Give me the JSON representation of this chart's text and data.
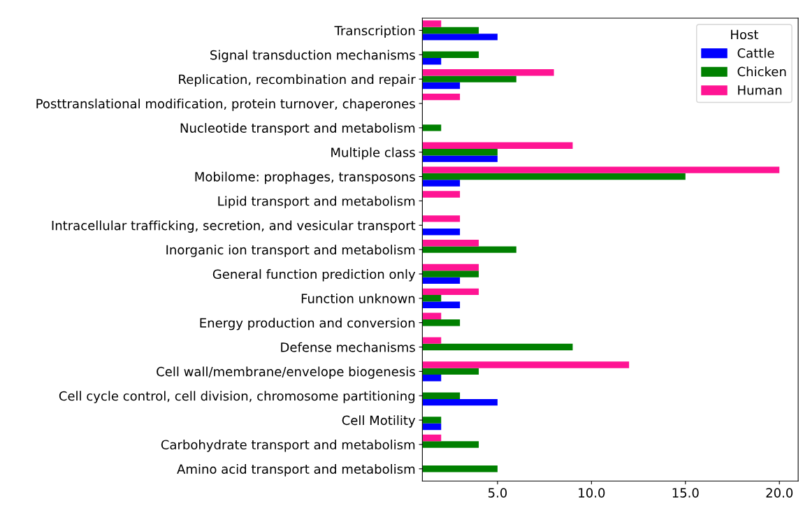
{
  "chart_data": {
    "type": "bar",
    "orientation": "horizontal",
    "legend_title": "Host",
    "legend": "top right",
    "grid": false,
    "categories": [
      "Transcription",
      "Signal transduction mechanisms",
      "Replication, recombination and repair",
      "Posttranslational modification, protein turnover, chaperones",
      "Nucleotide transport and metabolism",
      "Multiple class",
      "Mobilome: prophages, transposons",
      "Lipid transport and metabolism",
      "Intracellular trafficking, secretion, and vesicular transport",
      "Inorganic ion transport and metabolism",
      "General function prediction only",
      "Function unknown",
      "Energy production and conversion",
      "Defense mechanisms",
      "Cell wall/membrane/envelope biogenesis",
      "Cell cycle control, cell division, chromosome partitioning",
      "Cell Motility",
      "Carbohydrate transport and metabolism",
      "Amino acid transport and metabolism"
    ],
    "series": [
      {
        "name": "Cattle",
        "color": "#0000ff",
        "values": [
          5,
          2,
          3,
          null,
          null,
          5,
          3,
          null,
          3,
          null,
          3,
          3,
          null,
          null,
          2,
          5,
          2,
          null,
          null
        ]
      },
      {
        "name": "Chicken",
        "color": "#008000",
        "values": [
          4,
          4,
          6,
          null,
          2,
          5,
          15,
          null,
          null,
          6,
          4,
          2,
          3,
          9,
          4,
          3,
          2,
          4,
          5
        ]
      },
      {
        "name": "Human",
        "color": "#ff1493",
        "values": [
          2,
          null,
          8,
          3,
          null,
          9,
          20,
          3,
          3,
          4,
          4,
          4,
          2,
          2,
          12,
          null,
          null,
          2,
          null
        ]
      }
    ],
    "xlim": [
      1,
      21
    ],
    "xticks": [
      {
        "value": 5,
        "label": "5.0"
      },
      {
        "value": 10,
        "label": "10.0"
      },
      {
        "value": 15,
        "label": "15.0"
      },
      {
        "value": 20,
        "label": "20.0"
      }
    ]
  }
}
